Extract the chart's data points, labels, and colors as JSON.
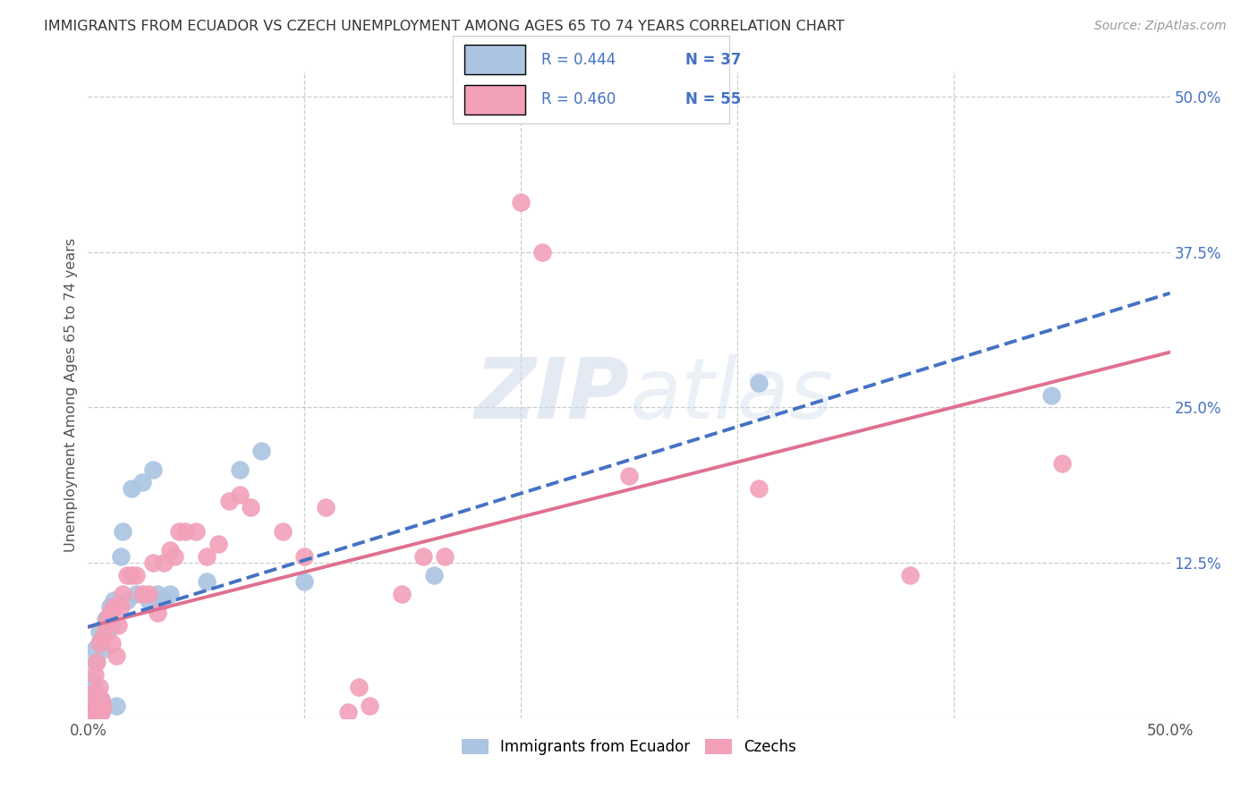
{
  "title": "IMMIGRANTS FROM ECUADOR VS CZECH UNEMPLOYMENT AMONG AGES 65 TO 74 YEARS CORRELATION CHART",
  "source": "Source: ZipAtlas.com",
  "ylabel": "Unemployment Among Ages 65 to 74 years",
  "xlim": [
    0.0,
    0.5
  ],
  "ylim": [
    0.0,
    0.52
  ],
  "y_ticks_right": [
    0.0,
    0.125,
    0.25,
    0.375,
    0.5
  ],
  "y_tick_labels_right": [
    "",
    "12.5%",
    "25.0%",
    "37.5%",
    "50.0%"
  ],
  "color_ecuador": "#aac4e2",
  "color_czech": "#f2a0b8",
  "color_blue": "#4472c4",
  "color_pink_line": "#e07090",
  "watermark_zip": "ZIP",
  "watermark_atlas": "atlas",
  "ecuador_scatter": [
    [
      0.001,
      0.005
    ],
    [
      0.002,
      0.01
    ],
    [
      0.002,
      0.03
    ],
    [
      0.003,
      0.045
    ],
    [
      0.003,
      0.055
    ],
    [
      0.004,
      0.01
    ],
    [
      0.004,
      0.02
    ],
    [
      0.005,
      0.06
    ],
    [
      0.005,
      0.07
    ],
    [
      0.006,
      0.005
    ],
    [
      0.006,
      0.015
    ],
    [
      0.007,
      0.055
    ],
    [
      0.007,
      0.065
    ],
    [
      0.008,
      0.08
    ],
    [
      0.009,
      0.07
    ],
    [
      0.01,
      0.09
    ],
    [
      0.011,
      0.075
    ],
    [
      0.012,
      0.095
    ],
    [
      0.013,
      0.01
    ],
    [
      0.015,
      0.13
    ],
    [
      0.016,
      0.15
    ],
    [
      0.018,
      0.095
    ],
    [
      0.02,
      0.185
    ],
    [
      0.022,
      0.1
    ],
    [
      0.025,
      0.19
    ],
    [
      0.028,
      0.095
    ],
    [
      0.03,
      0.2
    ],
    [
      0.032,
      0.1
    ],
    [
      0.035,
      0.095
    ],
    [
      0.038,
      0.1
    ],
    [
      0.055,
      0.11
    ],
    [
      0.07,
      0.2
    ],
    [
      0.08,
      0.215
    ],
    [
      0.1,
      0.11
    ],
    [
      0.16,
      0.115
    ],
    [
      0.31,
      0.27
    ],
    [
      0.445,
      0.26
    ]
  ],
  "czech_scatter": [
    [
      0.001,
      0.005
    ],
    [
      0.002,
      0.005
    ],
    [
      0.002,
      0.02
    ],
    [
      0.003,
      0.01
    ],
    [
      0.003,
      0.035
    ],
    [
      0.004,
      0.005
    ],
    [
      0.004,
      0.045
    ],
    [
      0.005,
      0.025
    ],
    [
      0.005,
      0.06
    ],
    [
      0.006,
      0.005
    ],
    [
      0.006,
      0.015
    ],
    [
      0.007,
      0.01
    ],
    [
      0.007,
      0.065
    ],
    [
      0.008,
      0.075
    ],
    [
      0.009,
      0.08
    ],
    [
      0.01,
      0.085
    ],
    [
      0.011,
      0.06
    ],
    [
      0.012,
      0.09
    ],
    [
      0.013,
      0.05
    ],
    [
      0.014,
      0.075
    ],
    [
      0.015,
      0.09
    ],
    [
      0.016,
      0.1
    ],
    [
      0.018,
      0.115
    ],
    [
      0.02,
      0.115
    ],
    [
      0.022,
      0.115
    ],
    [
      0.025,
      0.1
    ],
    [
      0.028,
      0.1
    ],
    [
      0.03,
      0.125
    ],
    [
      0.032,
      0.085
    ],
    [
      0.035,
      0.125
    ],
    [
      0.038,
      0.135
    ],
    [
      0.04,
      0.13
    ],
    [
      0.042,
      0.15
    ],
    [
      0.045,
      0.15
    ],
    [
      0.05,
      0.15
    ],
    [
      0.055,
      0.13
    ],
    [
      0.06,
      0.14
    ],
    [
      0.065,
      0.175
    ],
    [
      0.07,
      0.18
    ],
    [
      0.075,
      0.17
    ],
    [
      0.09,
      0.15
    ],
    [
      0.1,
      0.13
    ],
    [
      0.11,
      0.17
    ],
    [
      0.12,
      0.005
    ],
    [
      0.125,
      0.025
    ],
    [
      0.13,
      0.01
    ],
    [
      0.145,
      0.1
    ],
    [
      0.155,
      0.13
    ],
    [
      0.165,
      0.13
    ],
    [
      0.2,
      0.415
    ],
    [
      0.21,
      0.375
    ],
    [
      0.25,
      0.195
    ],
    [
      0.31,
      0.185
    ],
    [
      0.38,
      0.115
    ],
    [
      0.45,
      0.205
    ]
  ]
}
